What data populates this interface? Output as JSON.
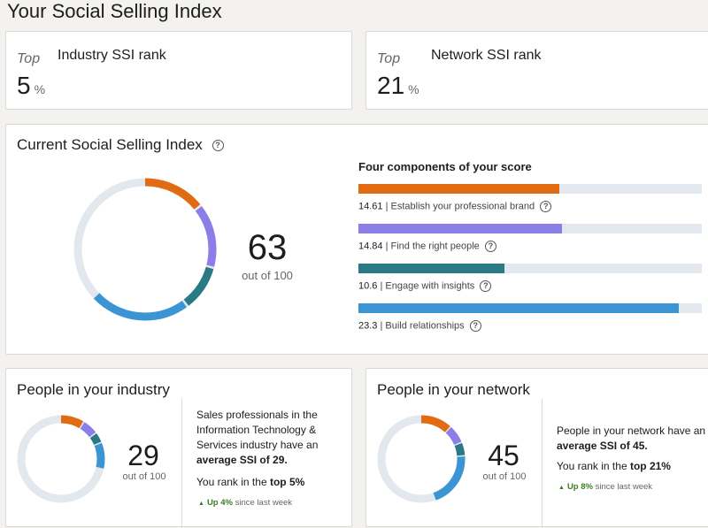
{
  "page_title": "Your Social Selling Index",
  "industry_rank": {
    "top_label": "Top",
    "title": "Industry SSI rank",
    "value": "5",
    "unit": "%"
  },
  "network_rank": {
    "top_label": "Top",
    "title": "Network SSI rank",
    "value": "21",
    "unit": "%"
  },
  "current": {
    "title": "Current Social Selling Index",
    "help_icon": "question-circle-icon",
    "score": "63",
    "out_of": "out of 100",
    "components_title": "Four components of your score",
    "components": [
      {
        "value": "14.61",
        "label": "| Establish your professional brand",
        "fraction": 0.584,
        "color": "#e06b12"
      },
      {
        "value": "14.84",
        "label": "| Find the right people",
        "fraction": 0.594,
        "color": "#8c7ee8"
      },
      {
        "value": "10.6",
        "label": "| Engage with insights",
        "fraction": 0.424,
        "color": "#2a7a85"
      },
      {
        "value": "23.3",
        "label": "| Build relationships",
        "fraction": 0.932,
        "color": "#3b95d4"
      }
    ]
  },
  "industry_people": {
    "title": "People in your industry",
    "score": "29",
    "out_of": "out of 100",
    "text_pre": "Sales professionals in the Information Technology & Services industry have an",
    "text_bold": "average SSI of 29.",
    "rank_pre": "You rank in the",
    "rank_bold": "top 5%",
    "trend_up": "Up 4%",
    "trend_rest": "since last week",
    "segments": [
      0.09,
      0.06,
      0.04,
      0.1
    ]
  },
  "network_people": {
    "title": "People in your network",
    "score": "45",
    "out_of": "out of 100",
    "text_pre": "People in your network have an",
    "text_bold": "average SSI of 45.",
    "rank_pre": "You rank in the",
    "rank_bold": "top 21%",
    "trend_up": "Up 8%",
    "trend_rest": "since last week",
    "segments": [
      0.12,
      0.07,
      0.05,
      0.21
    ]
  },
  "colors": {
    "brand": "#e06b12",
    "people": "#8c7ee8",
    "insights": "#2a7a85",
    "relationships": "#3b95d4",
    "track": "#e3e8ee"
  }
}
